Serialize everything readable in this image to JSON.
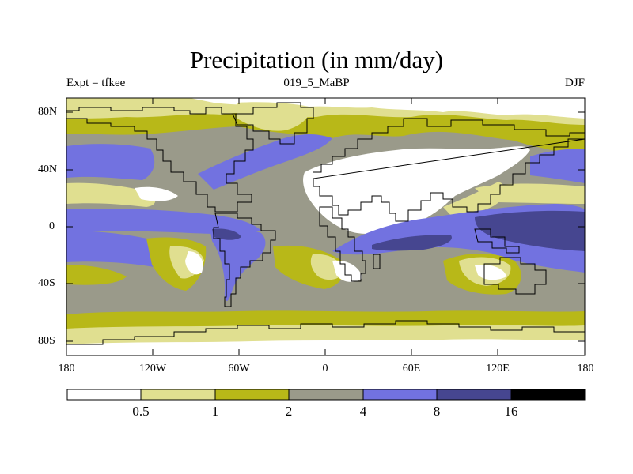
{
  "title": "Precipitation (in mm/day)",
  "header": {
    "left": "Expt = tfkee",
    "center": "019_5_MaBP",
    "right": "DJF"
  },
  "y_ticks": [
    "80N",
    "40N",
    "0",
    "40S",
    "80S"
  ],
  "x_ticks": [
    "180",
    "120W",
    "60W",
    "0",
    "60E",
    "120E",
    "180"
  ],
  "colorbar": {
    "labels": [
      "0.5",
      "1",
      "2",
      "4",
      "8",
      "16"
    ],
    "colors": [
      "#ffffff",
      "#e0df90",
      "#b8b818",
      "#9a9a8a",
      "#7272e0",
      "#464690",
      "#000000"
    ]
  },
  "chart_data": {
    "type": "heatmap",
    "title": "Precipitation (in mm/day)",
    "subtitle": "019_5_MaBP",
    "season": "DJF",
    "experiment": "Expt = tfkee",
    "x_range": [
      -180,
      180
    ],
    "y_range": [
      -90,
      90
    ],
    "contour_levels": [
      0.5,
      1,
      2,
      4,
      8,
      16
    ],
    "fill_colors": [
      "#ffffff",
      "#e0df90",
      "#b8b818",
      "#9a9a8a",
      "#7272e0",
      "#464690",
      "#000000"
    ]
  }
}
